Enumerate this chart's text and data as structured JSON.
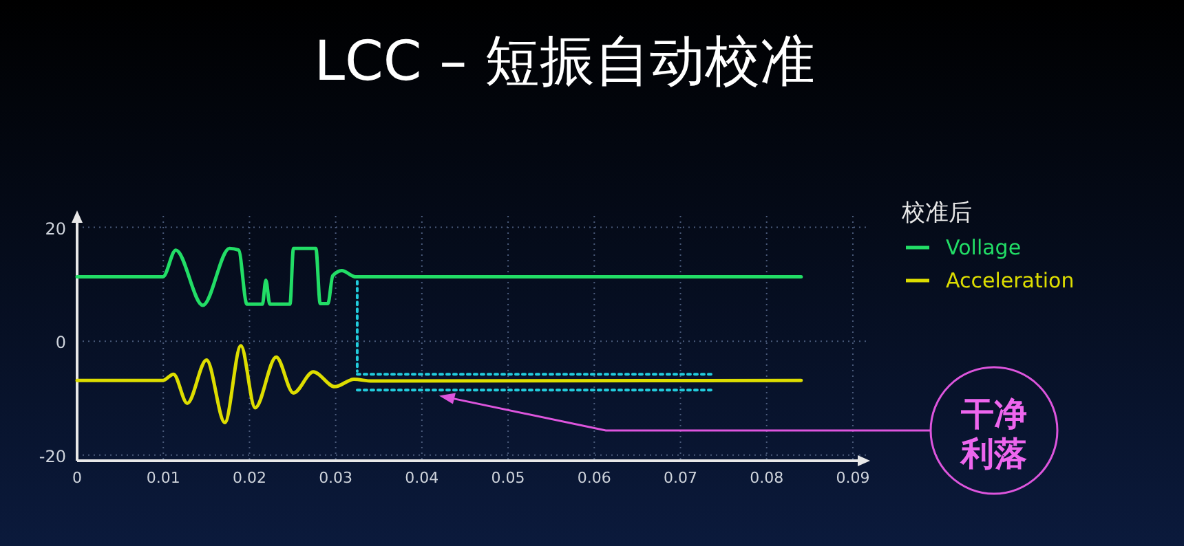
{
  "chart_data": {
    "type": "line",
    "title": "LCC – 短振自动校准",
    "legend_title": "校准后",
    "xlim": [
      0,
      0.092
    ],
    "ylim": [
      -21,
      22
    ],
    "xticks": [
      0,
      0.01,
      0.02,
      0.03,
      0.04,
      0.05,
      0.06,
      0.07,
      0.08,
      0.09
    ],
    "yticks": [
      -20,
      0,
      20
    ],
    "grid": true,
    "legend": "right",
    "marker": "none",
    "line_style": "solid",
    "series": [
      {
        "name": "Vollage",
        "color": "#22dd66",
        "x": [
          0,
          0.00995,
          0.01145,
          0.01459,
          0.01768,
          0.01874,
          0.0197,
          0.0215,
          0.0219,
          0.02236,
          0.0247,
          0.0251,
          0.0277,
          0.0282,
          0.0291,
          0.02966,
          0.0307,
          0.0323,
          0.084
        ],
        "values": [
          11.3,
          11.3,
          16,
          6.3,
          16.3,
          16,
          6.5,
          6.5,
          10.7,
          6.5,
          6.5,
          16.3,
          16.3,
          6.6,
          6.6,
          11.5,
          12.4,
          11.3,
          11.3
        ]
      },
      {
        "name": "Acceleration",
        "color": "#dddd00",
        "x": [
          0,
          0.00995,
          0.01118,
          0.01278,
          0.01502,
          0.01714,
          0.019,
          0.02066,
          0.0231,
          0.0251,
          0.0274,
          0.0299,
          0.0321,
          0.0342,
          0.084
        ],
        "values": [
          -6.9,
          -6.9,
          -5.8,
          -10.9,
          -3.3,
          -14.3,
          -0.8,
          -11.7,
          -2.8,
          -9.1,
          -5.4,
          -8,
          -6.7,
          -7,
          -6.9
        ]
      },
      {
        "type": "line",
        "color": "#22ccdd",
        "line_style": "dotted",
        "x": [
          0.0325,
          0.074
        ],
        "values": [
          -5.8,
          -5.8
        ]
      },
      {
        "type": "line",
        "color": "#22ccdd",
        "line_style": "dotted",
        "x": [
          0.0325,
          0.074
        ],
        "values": [
          -8.6,
          -8.6
        ]
      },
      {
        "type": "line",
        "color": "#22ccdd",
        "line_style": "dotted",
        "x": [
          0.0325,
          0.0325
        ],
        "values": [
          10.5,
          -5.3
        ]
      }
    ],
    "annotations": [
      {
        "text": "干净利落",
        "x": 0.042,
        "y": -9.6
      }
    ]
  }
}
